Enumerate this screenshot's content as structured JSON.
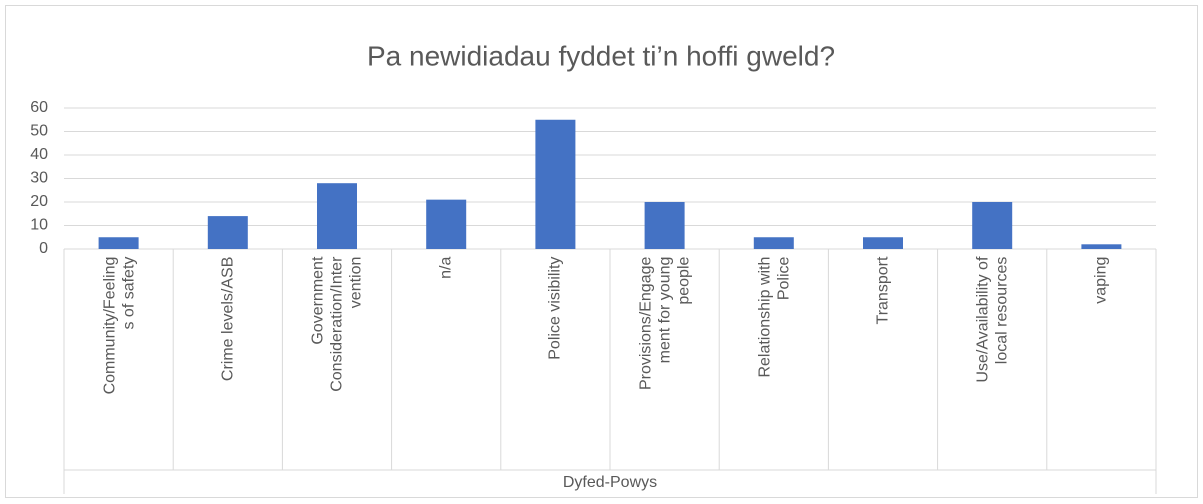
{
  "chart_data": {
    "type": "bar",
    "title": "Pa newidiadau fyddet ti’n hoffi gweld?",
    "categories": [
      "Community/Feelings of safety",
      "Crime levels/ASB",
      "Government Consideration/Intervention",
      "n/a",
      "Police visibility",
      "Provisions/Engagement for young people",
      "Relationship with Police",
      "Transport",
      "Use/Availability of local resources",
      "vaping"
    ],
    "values": [
      5,
      14,
      28,
      21,
      55,
      20,
      5,
      5,
      20,
      2
    ],
    "group_label": "Dyfed-Powys",
    "color": "#4472c4",
    "ylim": [
      0,
      60
    ],
    "yticks": [
      0,
      10,
      20,
      30,
      40,
      50,
      60
    ],
    "grid": true
  }
}
